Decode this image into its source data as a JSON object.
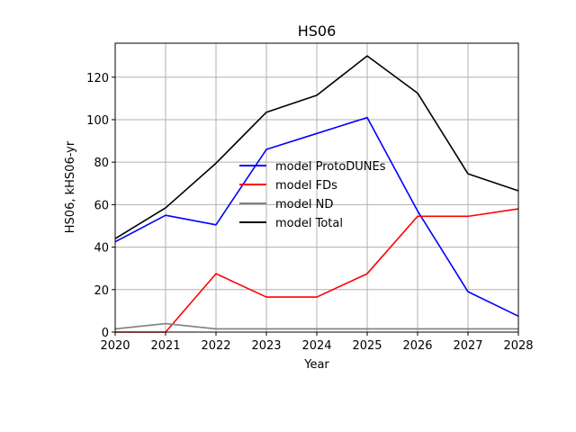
{
  "chart_data": {
    "type": "line",
    "title": "HS06",
    "xlabel": "Year",
    "ylabel": "HS06, kHS06-yr",
    "x": [
      2020,
      2021,
      2022,
      2023,
      2024,
      2025,
      2026,
      2027,
      2028
    ],
    "xlim": [
      2020,
      2028
    ],
    "ylim": [
      0,
      136
    ],
    "xticks": [
      "2020",
      "2021",
      "2022",
      "2023",
      "2024",
      "2025",
      "2026",
      "2027",
      "2028"
    ],
    "yticks": [
      "0",
      "20",
      "40",
      "60",
      "80",
      "100",
      "120"
    ],
    "grid": true,
    "legend_position": "center",
    "series": [
      {
        "name": "model ProtoDUNEs",
        "color": "#0000ff",
        "values": [
          42.5,
          55,
          50.5,
          86,
          93.5,
          101,
          57,
          19,
          7.5
        ]
      },
      {
        "name": "model FDs",
        "color": "#ff0000",
        "values": [
          0,
          0,
          27.5,
          16.5,
          16.5,
          27.5,
          54.5,
          54.5,
          58
        ]
      },
      {
        "name": "model ND",
        "color": "#808080",
        "values": [
          1.5,
          4,
          1.5,
          1.5,
          1.5,
          1.5,
          1.5,
          1.5,
          1.5
        ]
      },
      {
        "name": "model Total",
        "color": "#000000",
        "values": [
          44,
          58.5,
          79.5,
          103.5,
          111.5,
          130,
          112.5,
          74.5,
          66.5
        ]
      }
    ]
  }
}
